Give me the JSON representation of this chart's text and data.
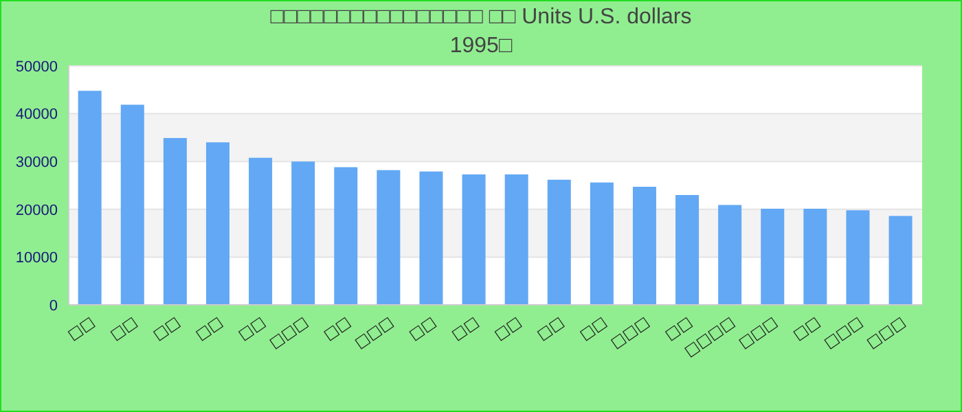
{
  "chart_data": {
    "type": "bar",
    "title": "□□□□□□□□□□□□□□□□ □□ Units U.S. dollars",
    "subtitle": "1995□",
    "categories": [
      "□□",
      "□□",
      "□□",
      "□□",
      "□□",
      "□□□",
      "□□",
      "□□□",
      "□□",
      "□□",
      "□□",
      "□□",
      "□□",
      "□□□",
      "□□",
      "□□□□",
      "□□□",
      "□□",
      "□□□",
      "□□□"
    ],
    "values": [
      44800,
      41900,
      34900,
      34000,
      30800,
      30000,
      28800,
      28200,
      27900,
      27300,
      27300,
      26200,
      25600,
      24700,
      23000,
      20900,
      20100,
      20100,
      19800,
      18600
    ],
    "color": "#62a8f4",
    "ylim": [
      0,
      50000
    ],
    "yticks": [
      0,
      10000,
      20000,
      30000,
      40000,
      50000
    ],
    "grid": "y"
  }
}
